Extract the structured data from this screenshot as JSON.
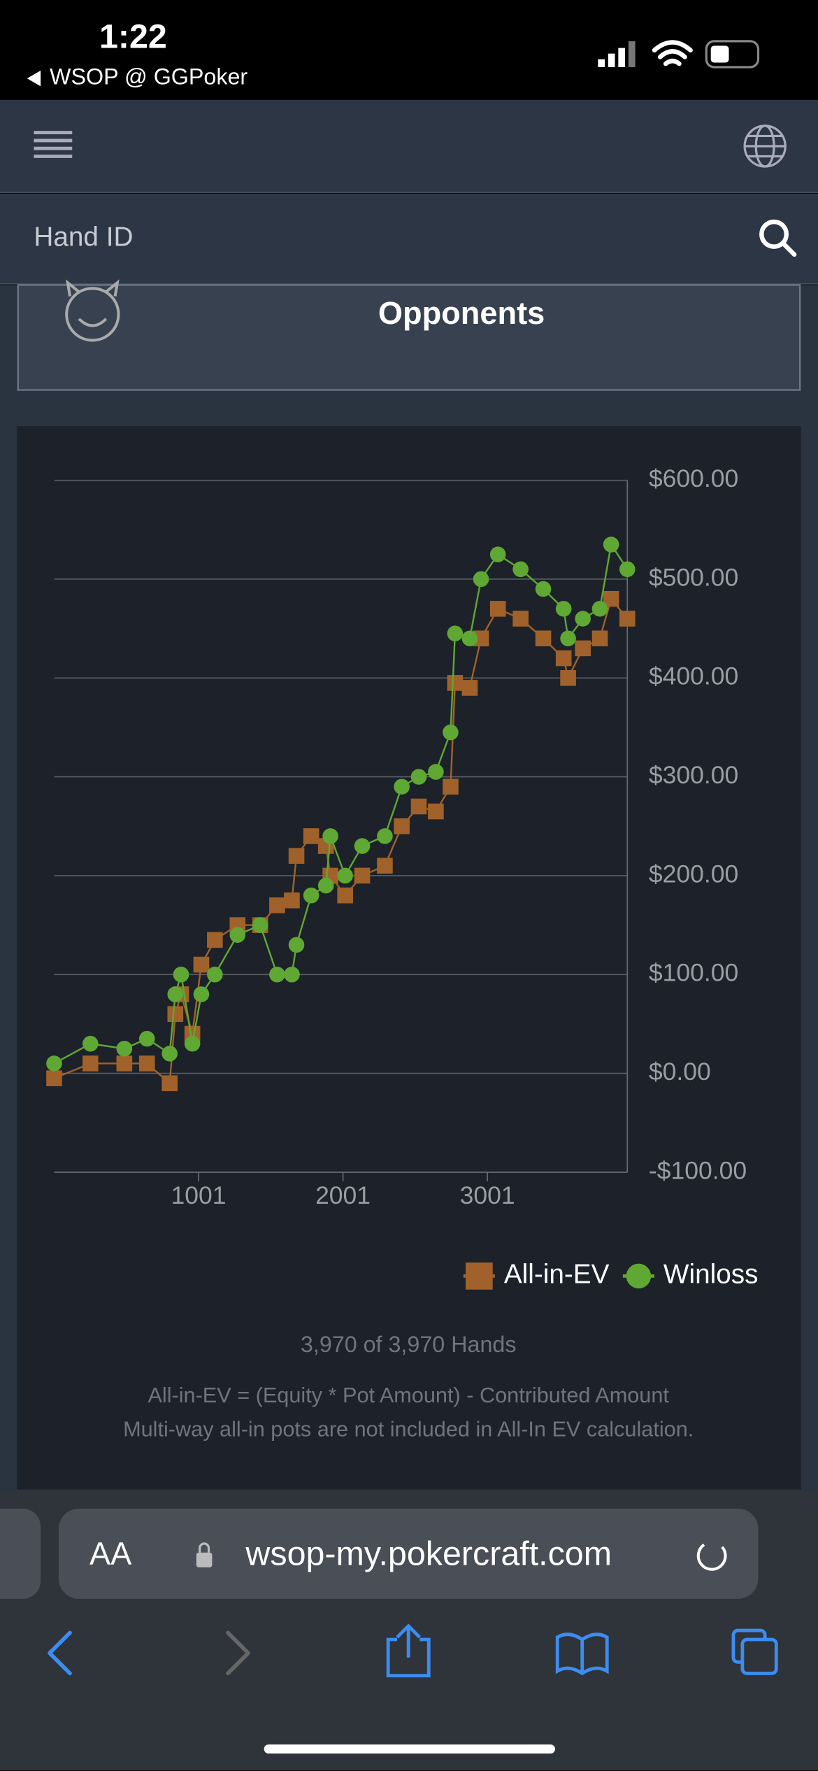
{
  "status_bar": {
    "time": "1:22",
    "back_app": "WSOP @ GGPoker"
  },
  "search": {
    "placeholder": "Hand ID"
  },
  "section": {
    "title": "Opponents"
  },
  "chart_data": {
    "type": "line",
    "x": [
      1,
      252,
      487,
      644,
      801,
      840,
      880,
      958,
      1020,
      1114,
      1271,
      1428,
      1545,
      1647,
      1679,
      1781,
      1883,
      1914,
      2016,
      2134,
      2291,
      2408,
      2526,
      2644,
      2746,
      2777,
      2879,
      2957,
      3074,
      3231,
      3388,
      3529,
      3560,
      3662,
      3780,
      3858,
      3970
    ],
    "series": [
      {
        "name": "All-in-EV",
        "color": "#a0622a",
        "marker": "square",
        "values": [
          -5,
          10,
          10,
          10,
          -10,
          60,
          80,
          40,
          110,
          135,
          150,
          150,
          170,
          175,
          220,
          240,
          230,
          200,
          180,
          200,
          210,
          250,
          270,
          265,
          290,
          395,
          390,
          440,
          470,
          460,
          440,
          420,
          400,
          430,
          440,
          480,
          460
        ]
      },
      {
        "name": "Winloss",
        "color": "#5fa833",
        "marker": "circle",
        "values": [
          10,
          30,
          25,
          35,
          20,
          80,
          100,
          30,
          80,
          100,
          140,
          150,
          100,
          100,
          130,
          180,
          190,
          240,
          200,
          230,
          240,
          290,
          300,
          305,
          345,
          445,
          440,
          500,
          525,
          510,
          490,
          470,
          440,
          460,
          470,
          535,
          510
        ]
      }
    ],
    "xlim": [
      1,
      3970
    ],
    "xticks": [
      1001,
      2001,
      3001
    ],
    "ylim": [
      -100,
      600
    ],
    "yticks": [
      {
        "value": -100,
        "label": "-$100.00"
      },
      {
        "value": 0,
        "label": "$0.00"
      },
      {
        "value": 100,
        "label": "$100.00"
      },
      {
        "value": 200,
        "label": "$200.00"
      },
      {
        "value": 300,
        "label": "$300.00"
      },
      {
        "value": 400,
        "label": "$400.00"
      },
      {
        "value": 500,
        "label": "$500.00"
      },
      {
        "value": 600,
        "label": "$600.00"
      }
    ],
    "grid": true,
    "legend": "bottom right",
    "summary": "3,970 of 3,970 Hands",
    "notes": [
      "All-in-EV = (Equity * Pot Amount) - Contributed Amount",
      "Multi-way all-in pots are not included in All-In EV calculation."
    ]
  },
  "browser": {
    "text_size": "AA",
    "url": "wsop-my.pokercraft.com"
  }
}
